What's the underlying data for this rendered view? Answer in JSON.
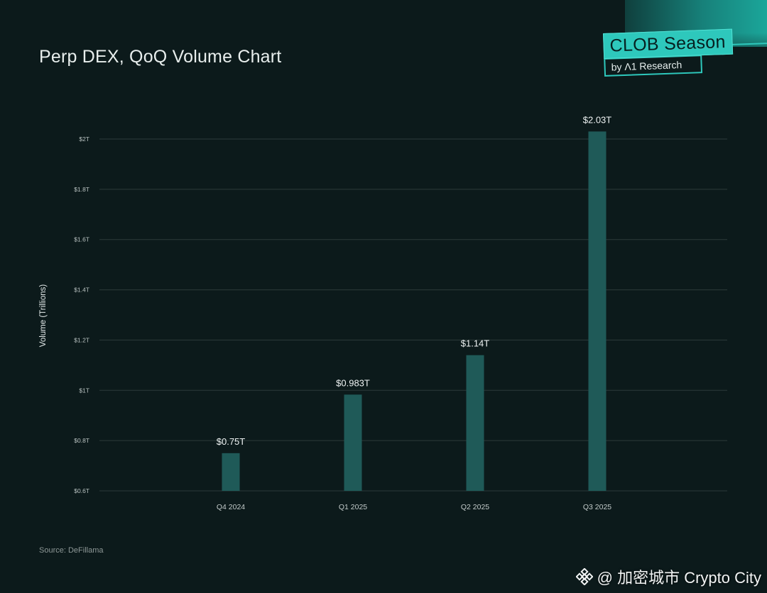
{
  "title": "Perp DEX, QoQ Volume Chart",
  "badge": {
    "main": "CLOB Season",
    "sub": "by Λ1 Research"
  },
  "source": "Source: DeFillama",
  "watermark": {
    "icon": "binance-diamond-icon",
    "text": "@ 加密城市 Crypto City"
  },
  "colors": {
    "background": "#0c1a1b",
    "bar": "#1f5a58",
    "grid": "#2c3a3b",
    "accent": "#2ec8bc"
  },
  "chart_data": {
    "type": "bar",
    "title": "Perp DEX, QoQ Volume Chart",
    "ylabel": "Volume (Trillions)",
    "xlabel": "",
    "categories": [
      "Q4 2024",
      "Q1 2025",
      "Q2 2025",
      "Q3 2025"
    ],
    "values": [
      0.75,
      0.983,
      1.14,
      2.03
    ],
    "data_labels": [
      "$0.75T",
      "$0.983T",
      "$1.14T",
      "$2.03T"
    ],
    "ylim": [
      0.6,
      2.0
    ],
    "yticks": [
      0.6,
      0.8,
      1.0,
      1.2,
      1.4,
      1.6,
      1.8,
      2.0
    ],
    "ytick_labels": [
      "$0.6T",
      "$0.8T",
      "$1T",
      "$1.2T",
      "$1.4T",
      "$1.6T",
      "$1.8T",
      "$2T"
    ],
    "grid": true,
    "legend": "none"
  }
}
